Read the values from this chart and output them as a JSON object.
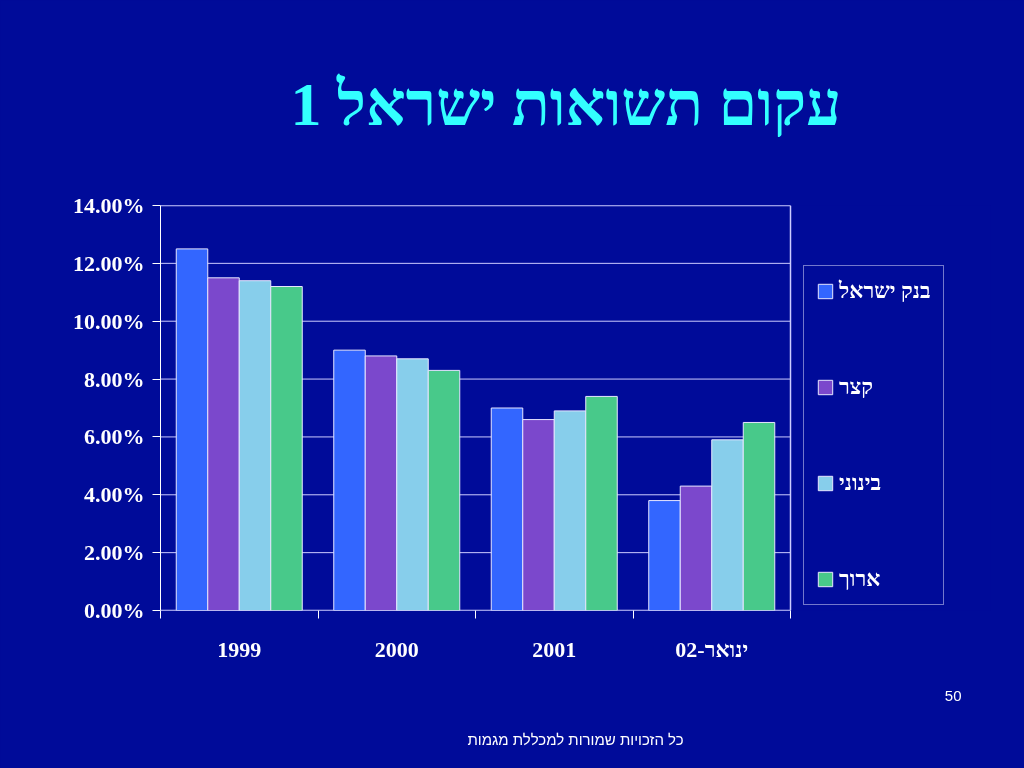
{
  "chart_data": {
    "type": "bar",
    "title": "עקום תשואות ישראל 1",
    "categories": [
      "1999",
      "2000",
      "2001",
      "ינואר-02"
    ],
    "series": [
      {
        "name": "בנק ישראל",
        "color": "#3366ff",
        "values": [
          12.5,
          9.0,
          7.0,
          3.8
        ]
      },
      {
        "name": "קצר",
        "color": "#7b48cc",
        "values": [
          11.5,
          8.8,
          6.6,
          4.3
        ]
      },
      {
        "name": "בינוני",
        "color": "#87ceeb",
        "values": [
          11.4,
          8.7,
          6.9,
          5.9
        ]
      },
      {
        "name": "ארוך",
        "color": "#48c98a",
        "values": [
          11.2,
          8.3,
          7.4,
          6.5
        ]
      }
    ],
    "ylim": [
      0,
      14
    ],
    "yticks": [
      {
        "value": 0,
        "label": "0.00%"
      },
      {
        "value": 2,
        "label": "2.00%"
      },
      {
        "value": 4,
        "label": "4.00%"
      },
      {
        "value": 6,
        "label": "6.00%"
      },
      {
        "value": 8,
        "label": "8.00%"
      },
      {
        "value": 10,
        "label": "10.00%"
      },
      {
        "value": 12,
        "label": "12.00%"
      },
      {
        "value": 14,
        "label": "14.00%"
      }
    ],
    "grid": "y",
    "legend": "right",
    "annotations": [
      "כל הזכויות שמורות למכללת מגמות",
      "50"
    ]
  }
}
